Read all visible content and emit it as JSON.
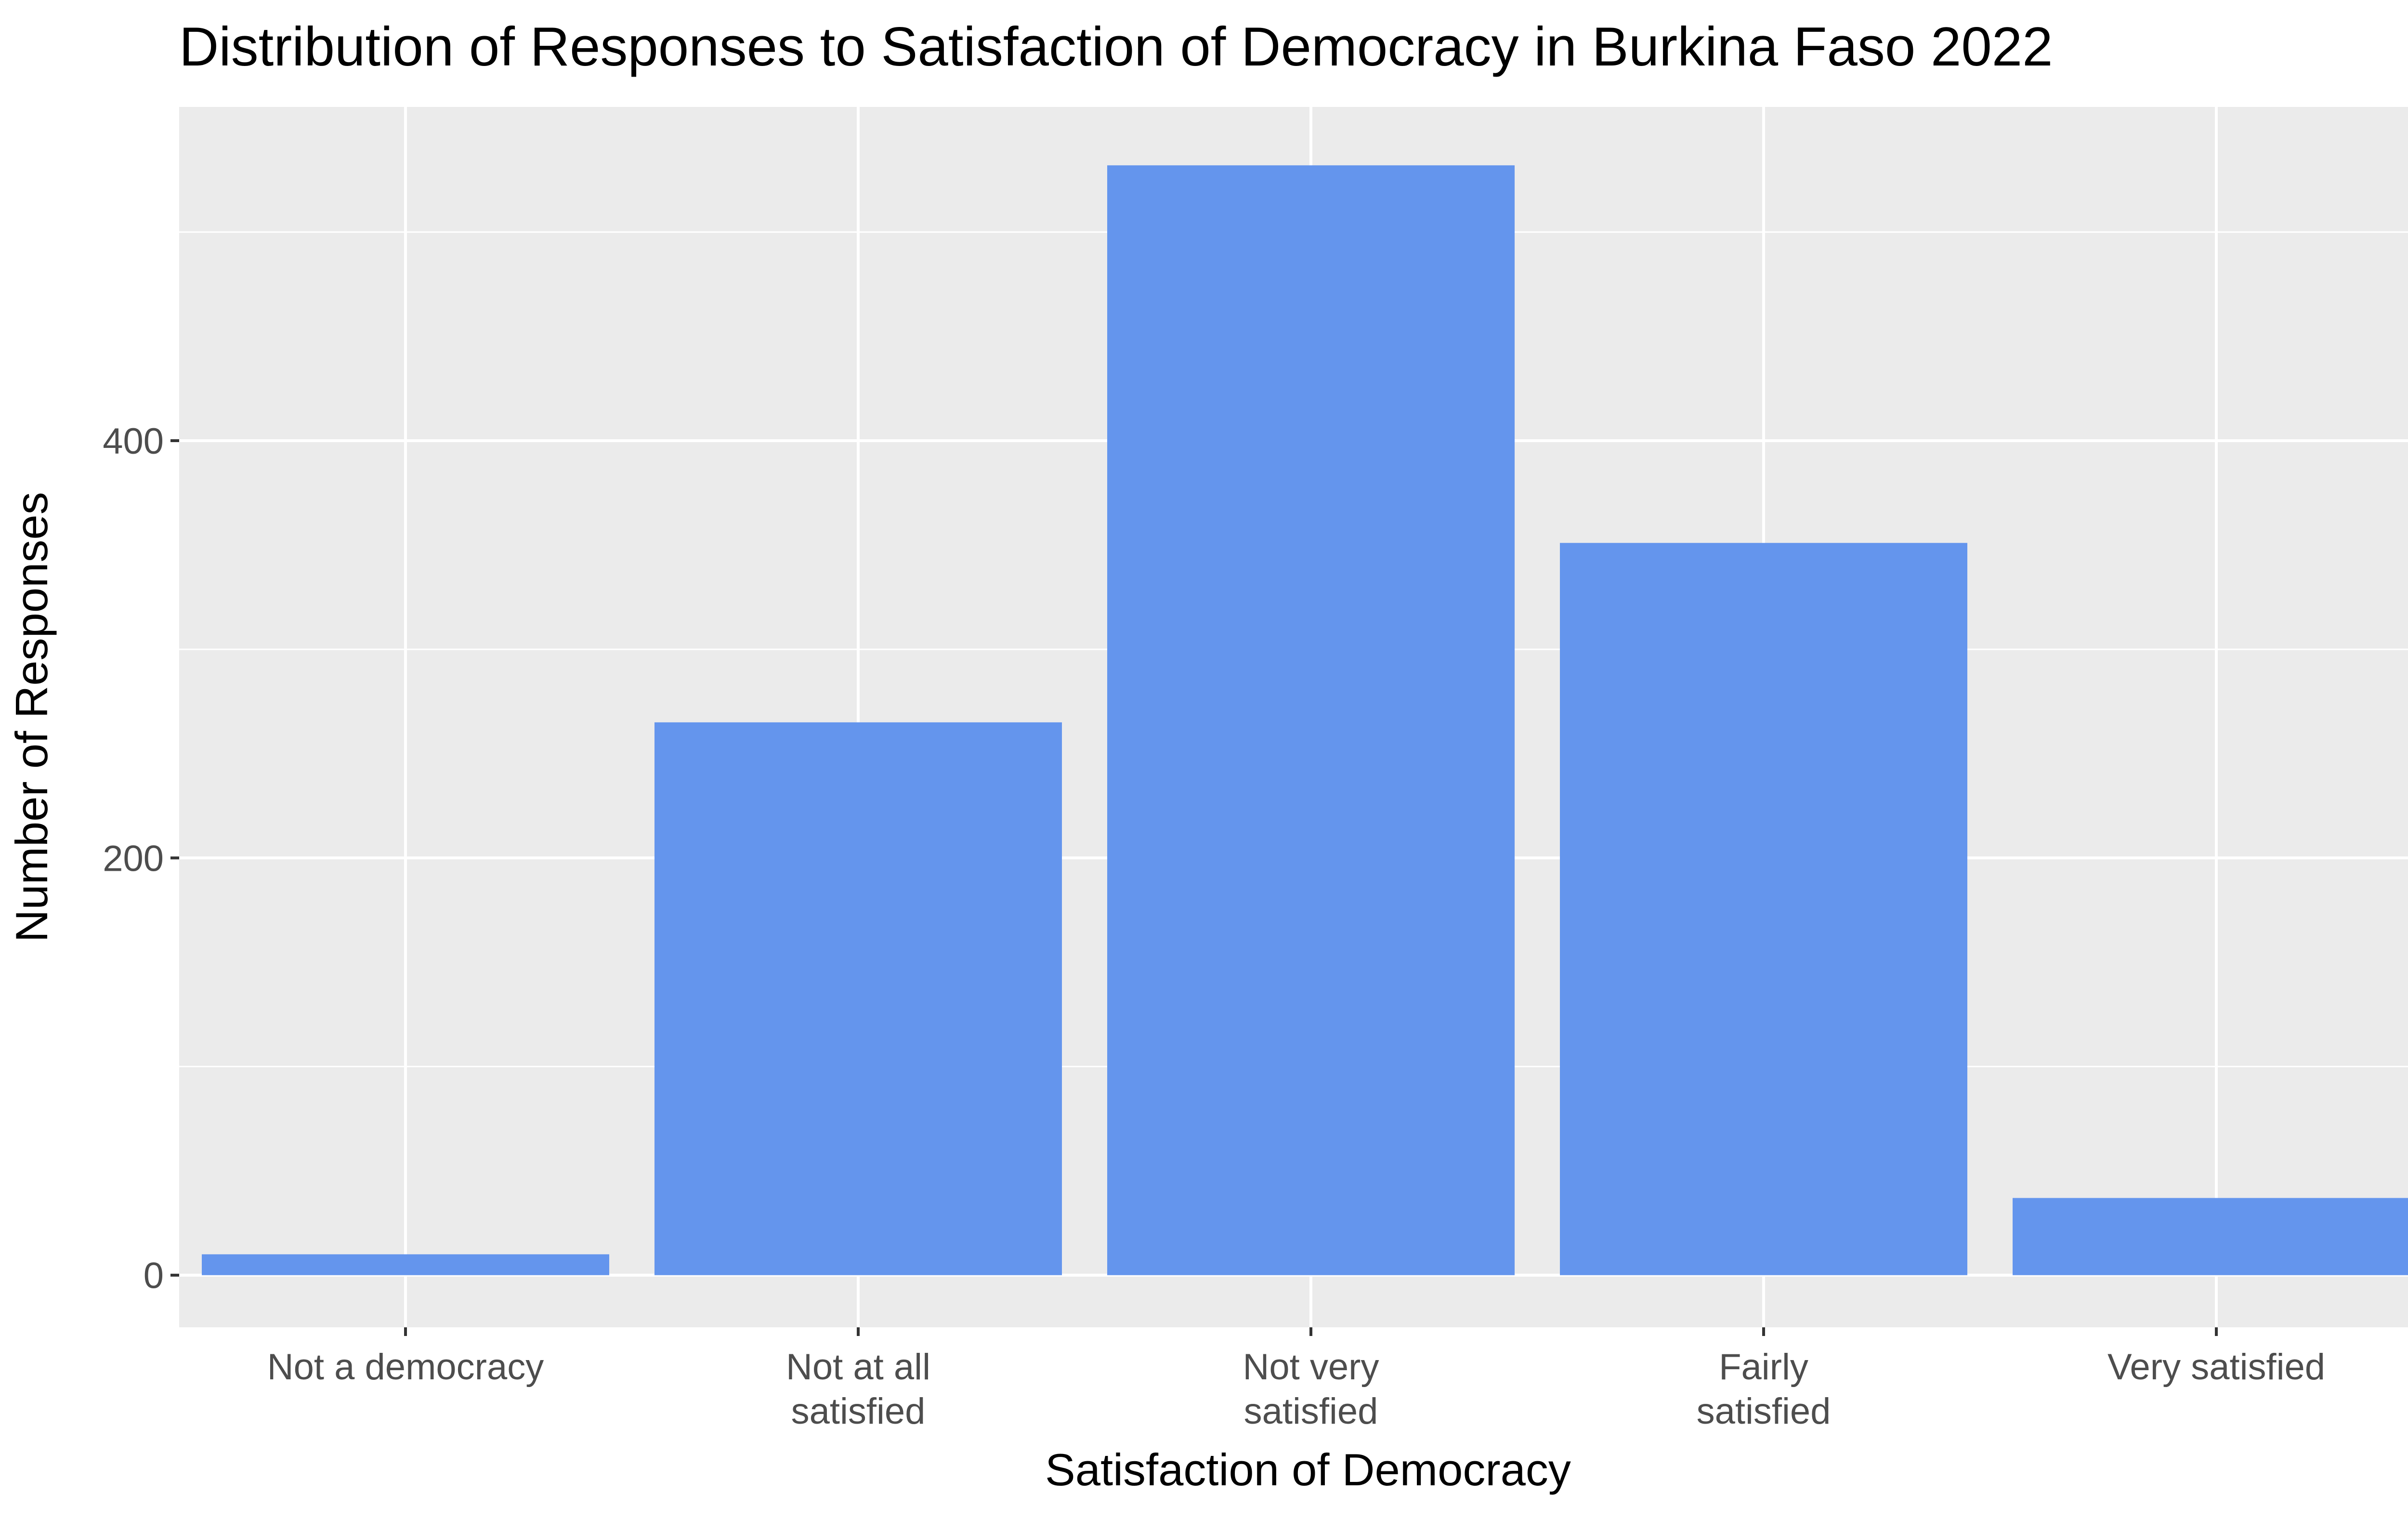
{
  "chart_data": {
    "type": "bar",
    "title": "Distribution of Responses to Satisfaction of Democracy in Burkina Faso 2022",
    "xlabel": "Satisfaction of Democracy",
    "ylabel": "Number of Responses",
    "categories": [
      [
        "Not a democracy"
      ],
      [
        "Not at all",
        "satisfied"
      ],
      [
        "Not very",
        "satisfied"
      ],
      [
        "Fairly",
        "satisfied"
      ],
      [
        "Very satisfied"
      ]
    ],
    "values": [
      10,
      265,
      532,
      351,
      37
    ],
    "yticks": [
      "0",
      "200",
      "400"
    ],
    "ylim": [
      -25,
      560
    ],
    "grid": true,
    "legend": "none",
    "colors": {
      "bar": "#6495ED",
      "panel": "#EBEBEB",
      "grid": "#FFFFFF"
    }
  }
}
